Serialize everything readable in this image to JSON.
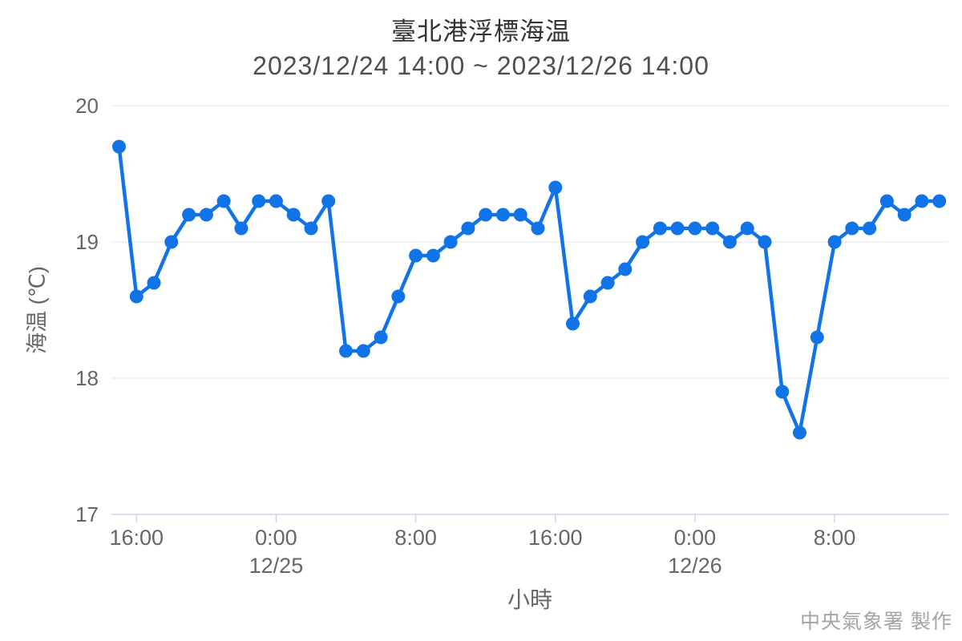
{
  "chart_data": {
    "type": "line",
    "title": "臺北港浮標海温",
    "subtitle": "2023/12/24 14:00 ~ 2023/12/26 14:00",
    "xlabel": "小時",
    "ylabel": "海温 (℃)",
    "ylim": [
      17,
      20
    ],
    "y_ticks": [
      20,
      19,
      18,
      17
    ],
    "grid": "horizontal",
    "legend": "none",
    "x_ticks": [
      {
        "index": 1,
        "label": "16:00"
      },
      {
        "index": 9,
        "label": "0:00",
        "date": "12/25"
      },
      {
        "index": 17,
        "label": "8:00"
      },
      {
        "index": 25,
        "label": "16:00"
      },
      {
        "index": 33,
        "label": "0:00",
        "date": "12/26"
      },
      {
        "index": 41,
        "label": "8:00"
      }
    ],
    "x": [
      "12/24 15:00",
      "12/24 16:00",
      "12/24 17:00",
      "12/24 18:00",
      "12/24 19:00",
      "12/24 20:00",
      "12/24 21:00",
      "12/24 22:00",
      "12/24 23:00",
      "12/25 0:00",
      "12/25 1:00",
      "12/25 2:00",
      "12/25 3:00",
      "12/25 4:00",
      "12/25 5:00",
      "12/25 6:00",
      "12/25 7:00",
      "12/25 8:00",
      "12/25 9:00",
      "12/25 10:00",
      "12/25 11:00",
      "12/25 12:00",
      "12/25 13:00",
      "12/25 14:00",
      "12/25 15:00",
      "12/25 16:00",
      "12/25 17:00",
      "12/25 18:00",
      "12/25 19:00",
      "12/25 20:00",
      "12/25 21:00",
      "12/25 22:00",
      "12/25 23:00",
      "12/26 0:00",
      "12/26 1:00",
      "12/26 2:00",
      "12/26 3:00",
      "12/26 4:00",
      "12/26 5:00",
      "12/26 6:00",
      "12/26 7:00",
      "12/26 8:00",
      "12/26 9:00",
      "12/26 10:00",
      "12/26 11:00",
      "12/26 12:00",
      "12/26 13:00",
      "12/26 14:00"
    ],
    "values": [
      19.7,
      18.6,
      18.7,
      19.0,
      19.2,
      19.2,
      19.3,
      19.1,
      19.3,
      19.3,
      19.2,
      19.1,
      19.3,
      18.2,
      18.2,
      18.3,
      18.6,
      18.9,
      18.9,
      19.0,
      19.1,
      19.2,
      19.2,
      19.2,
      19.1,
      19.4,
      18.4,
      18.6,
      18.7,
      18.8,
      19.0,
      19.1,
      19.1,
      19.1,
      19.1,
      19.0,
      19.1,
      19.0,
      17.9,
      17.6,
      18.3,
      19.0,
      19.1,
      19.1,
      19.3,
      19.2,
      19.3,
      19.3
    ]
  },
  "footer": {
    "credit": "中央氣象署 製作"
  },
  "colors": {
    "line": "#1173e8",
    "marker": "#1173e8",
    "gridline": "#e6e6e6",
    "axis_line": "#ccd6eb",
    "tick_label": "#666666",
    "title": "#333333",
    "subtitle": "#4f4f4f",
    "credit": "#a5a5a5",
    "background": "#ffffff"
  }
}
